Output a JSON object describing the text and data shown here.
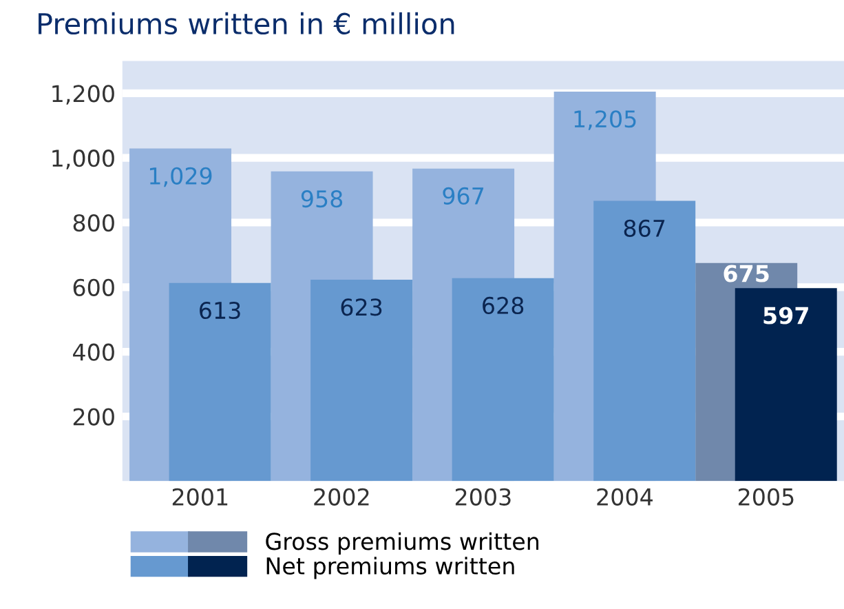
{
  "chart_data": {
    "type": "bar",
    "title": "Premiums written in € million",
    "categories": [
      "2001",
      "2002",
      "2003",
      "2004",
      "2005"
    ],
    "series": [
      {
        "name": "Gross premiums written",
        "colors": [
          "#95b3de",
          "#95b3de",
          "#95b3de",
          "#95b3de",
          "#7088ab"
        ],
        "values": [
          1029,
          958,
          967,
          1205,
          675
        ],
        "value_labels": [
          "1,029",
          "958",
          "967",
          "1,205",
          "675"
        ]
      },
      {
        "name": "Net premiums written",
        "colors": [
          "#6699d0",
          "#6699d0",
          "#6699d0",
          "#6699d0",
          "#012350"
        ],
        "values": [
          613,
          623,
          628,
          867,
          597
        ],
        "value_labels": [
          "613",
          "623",
          "628",
          "867",
          "597"
        ]
      }
    ],
    "ylim": [
      0,
      1300
    ],
    "yticks": [
      {
        "value": 200,
        "label": "200"
      },
      {
        "value": 400,
        "label": "400"
      },
      {
        "value": 600,
        "label": "600"
      },
      {
        "value": 800,
        "label": "800"
      },
      {
        "value": 1000,
        "label": "1,000"
      },
      {
        "value": 1200,
        "label": "1,200"
      }
    ],
    "grid": "y",
    "legend": "bottom left"
  }
}
